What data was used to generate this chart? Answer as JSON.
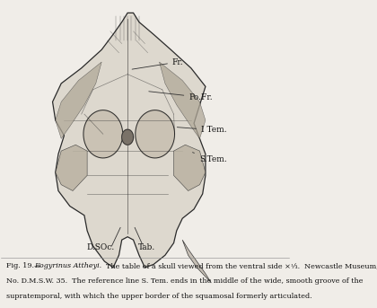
{
  "background_color": "#f0ede8",
  "fig_width": 4.2,
  "fig_height": 3.43,
  "dpi": 100,
  "skull_outline_color": "#2a2a2a",
  "line_color": "#333333",
  "caption_fig": "Fig. 19.",
  "caption_dash": "—",
  "caption_italic": "Eogyrinus Attheyi.",
  "caption_rest1": "  The table of a skull viewed from the ventral side ×⅓.  Newcastle Museum,",
  "caption_line2": "No. D.M.S.W. 35.  The reference line S. Tem. ends in the middle of the wide, smooth groove of the",
  "caption_line3": "supratemporal, with which the upper border of the squamosal formerly articulated."
}
